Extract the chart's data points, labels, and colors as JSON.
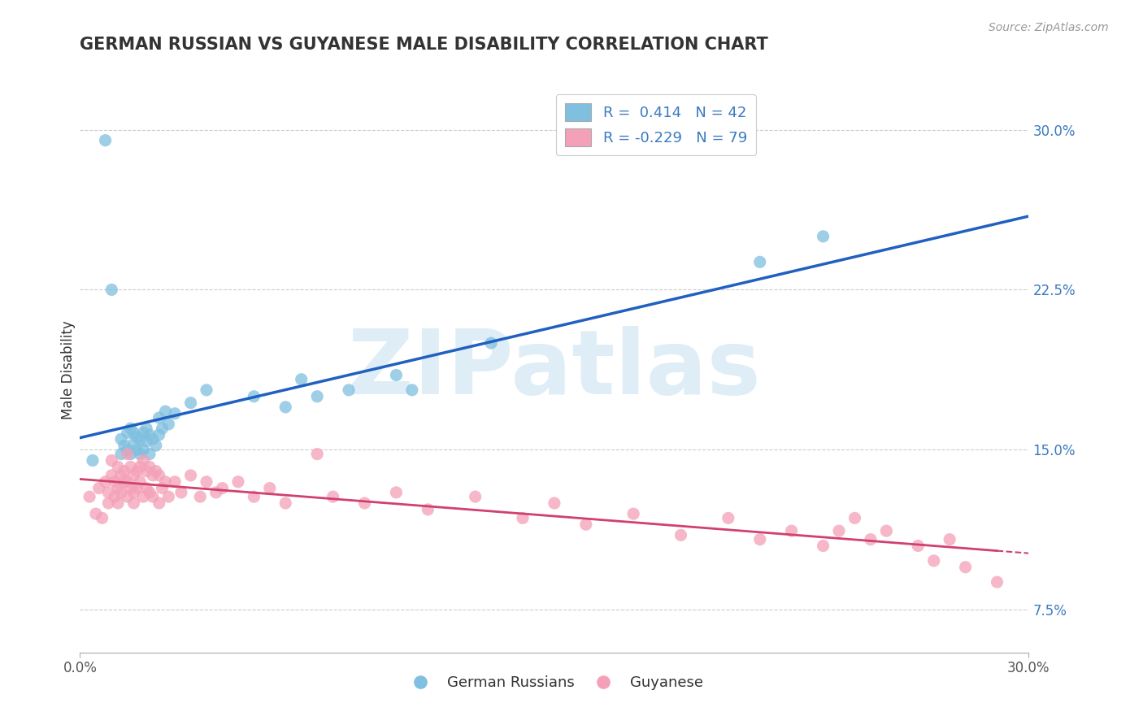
{
  "title": "GERMAN RUSSIAN VS GUYANESE MALE DISABILITY CORRELATION CHART",
  "source": "Source: ZipAtlas.com",
  "ylabel": "Male Disability",
  "xlim": [
    0.0,
    0.3
  ],
  "ylim": [
    0.055,
    0.32
  ],
  "xticks": [
    0.0,
    0.3
  ],
  "xticklabels": [
    "0.0%",
    "30.0%"
  ],
  "yticks": [
    0.075,
    0.15,
    0.225,
    0.3
  ],
  "yticklabels": [
    "7.5%",
    "15.0%",
    "22.5%",
    "30.0%"
  ],
  "blue_color": "#7fbfdf",
  "pink_color": "#f4a0b8",
  "blue_line_color": "#2060c0",
  "pink_line_color": "#d04070",
  "accent_color": "#3a7abf",
  "legend_r_blue": "0.414",
  "legend_n_blue": "42",
  "legend_r_pink": "-0.229",
  "legend_n_pink": "79",
  "legend_label_blue": "German Russians",
  "legend_label_pink": "Guyanese",
  "watermark": "ZIPatlas",
  "grid_color": "#cccccc",
  "blue_scatter_x": [
    0.004,
    0.008,
    0.01,
    0.013,
    0.013,
    0.014,
    0.015,
    0.015,
    0.016,
    0.016,
    0.017,
    0.017,
    0.018,
    0.018,
    0.019,
    0.019,
    0.02,
    0.02,
    0.021,
    0.021,
    0.022,
    0.022,
    0.023,
    0.024,
    0.025,
    0.025,
    0.026,
    0.027,
    0.028,
    0.03,
    0.035,
    0.04,
    0.055,
    0.065,
    0.07,
    0.075,
    0.085,
    0.1,
    0.105,
    0.13,
    0.215,
    0.235
  ],
  "blue_scatter_y": [
    0.145,
    0.295,
    0.225,
    0.148,
    0.155,
    0.152,
    0.15,
    0.158,
    0.148,
    0.16,
    0.153,
    0.158,
    0.15,
    0.156,
    0.148,
    0.155,
    0.15,
    0.158,
    0.154,
    0.16,
    0.148,
    0.157,
    0.155,
    0.152,
    0.157,
    0.165,
    0.16,
    0.168,
    0.162,
    0.167,
    0.172,
    0.178,
    0.175,
    0.17,
    0.183,
    0.175,
    0.178,
    0.185,
    0.178,
    0.2,
    0.238,
    0.25
  ],
  "pink_scatter_x": [
    0.003,
    0.005,
    0.006,
    0.007,
    0.008,
    0.009,
    0.009,
    0.01,
    0.01,
    0.011,
    0.011,
    0.012,
    0.012,
    0.012,
    0.013,
    0.013,
    0.014,
    0.014,
    0.015,
    0.015,
    0.015,
    0.016,
    0.016,
    0.017,
    0.017,
    0.017,
    0.018,
    0.018,
    0.019,
    0.019,
    0.02,
    0.02,
    0.021,
    0.021,
    0.022,
    0.022,
    0.023,
    0.023,
    0.024,
    0.025,
    0.025,
    0.026,
    0.027,
    0.028,
    0.03,
    0.032,
    0.035,
    0.038,
    0.04,
    0.043,
    0.045,
    0.05,
    0.055,
    0.06,
    0.065,
    0.075,
    0.08,
    0.09,
    0.1,
    0.11,
    0.125,
    0.14,
    0.15,
    0.16,
    0.175,
    0.19,
    0.205,
    0.215,
    0.225,
    0.235,
    0.24,
    0.245,
    0.25,
    0.255,
    0.265,
    0.27,
    0.275,
    0.28,
    0.29
  ],
  "pink_scatter_y": [
    0.128,
    0.12,
    0.132,
    0.118,
    0.135,
    0.125,
    0.13,
    0.145,
    0.138,
    0.135,
    0.128,
    0.142,
    0.132,
    0.125,
    0.138,
    0.13,
    0.14,
    0.135,
    0.148,
    0.135,
    0.128,
    0.142,
    0.132,
    0.138,
    0.13,
    0.125,
    0.14,
    0.132,
    0.142,
    0.135,
    0.145,
    0.128,
    0.14,
    0.132,
    0.142,
    0.13,
    0.138,
    0.128,
    0.14,
    0.138,
    0.125,
    0.132,
    0.135,
    0.128,
    0.135,
    0.13,
    0.138,
    0.128,
    0.135,
    0.13,
    0.132,
    0.135,
    0.128,
    0.132,
    0.125,
    0.148,
    0.128,
    0.125,
    0.13,
    0.122,
    0.128,
    0.118,
    0.125,
    0.115,
    0.12,
    0.11,
    0.118,
    0.108,
    0.112,
    0.105,
    0.112,
    0.118,
    0.108,
    0.112,
    0.105,
    0.098,
    0.108,
    0.095,
    0.088
  ]
}
